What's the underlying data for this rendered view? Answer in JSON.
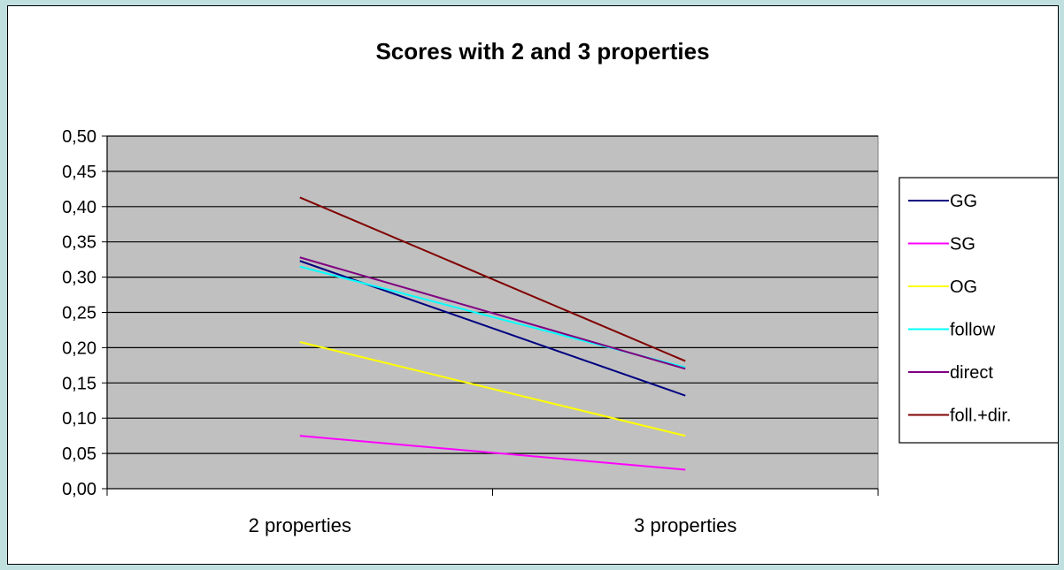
{
  "chart_data": {
    "type": "line",
    "title": "Scores with 2 and 3 properties",
    "xlabel": "",
    "ylabel": "",
    "categories": [
      "2 properties",
      "3 properties"
    ],
    "ylim": [
      0,
      0.5
    ],
    "yticks": [
      "0,00",
      "0,05",
      "0,10",
      "0,15",
      "0,20",
      "0,25",
      "0,30",
      "0,35",
      "0,40",
      "0,45",
      "0,50"
    ],
    "grid": true,
    "legend_position": "right",
    "plot_background": "#c0c0c0",
    "series": [
      {
        "name": "GG",
        "color": "#000080",
        "values": [
          0.323,
          0.132
        ]
      },
      {
        "name": "SG",
        "color": "#ff00ff",
        "values": [
          0.075,
          0.027
        ]
      },
      {
        "name": "OG",
        "color": "#ffff00",
        "values": [
          0.208,
          0.075
        ]
      },
      {
        "name": "follow",
        "color": "#00ffff",
        "values": [
          0.315,
          0.172
        ]
      },
      {
        "name": "direct",
        "color": "#800080",
        "values": [
          0.328,
          0.17
        ]
      },
      {
        "name": "foll.+dir.",
        "color": "#800000",
        "values": [
          0.413,
          0.181
        ]
      }
    ]
  }
}
